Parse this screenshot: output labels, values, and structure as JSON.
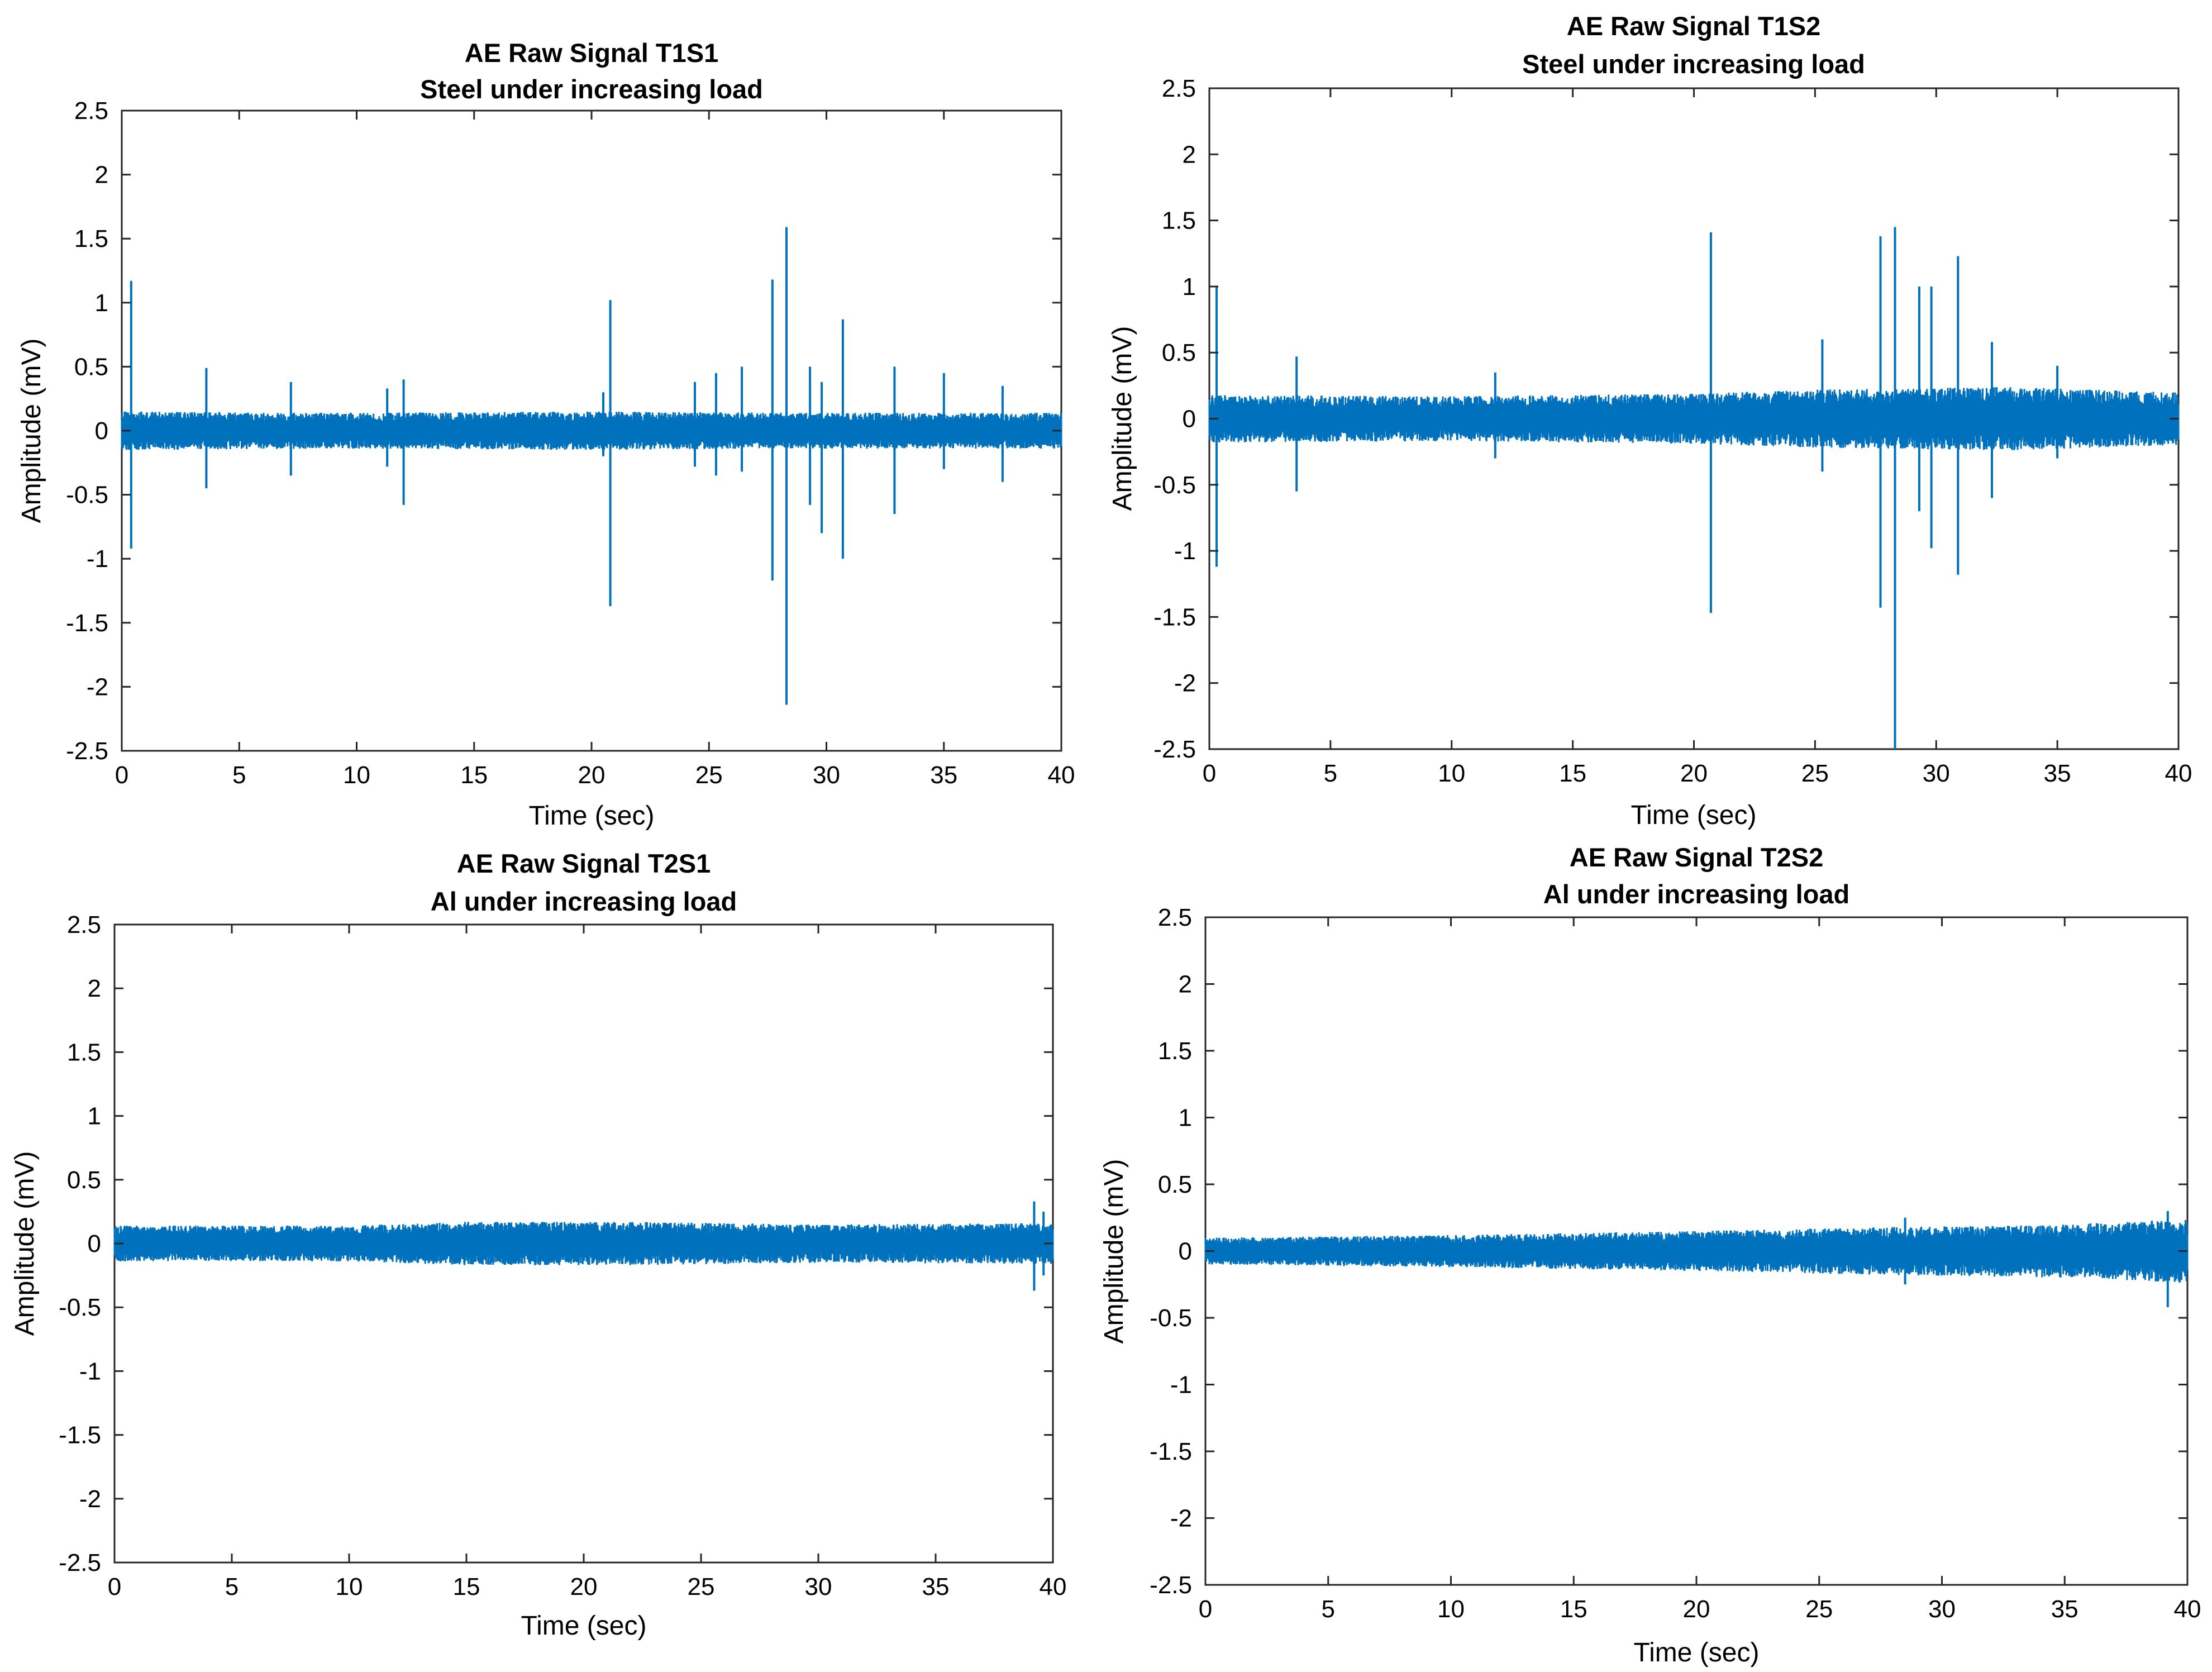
{
  "chart_data": [
    {
      "type": "line",
      "title": "AE Raw Signal T1S1",
      "subtitle": "Steel under increasing load",
      "xlabel": "Time (sec)",
      "ylabel": "Amplitude (mV)",
      "xlim": [
        0,
        40
      ],
      "ylim": [
        -2.5,
        2.5
      ],
      "xticks": [
        "0",
        "5",
        "10",
        "15",
        "20",
        "25",
        "30",
        "35",
        "40"
      ],
      "yticks": [
        "2.5",
        "2",
        "1.5",
        "1",
        "0.5",
        "0",
        "-0.5",
        "-1",
        "-1.5",
        "-2",
        "-2.5"
      ],
      "color": "#0072BD",
      "noise_band": [
        [
          0,
          0.15
        ],
        [
          10,
          0.14
        ],
        [
          20,
          0.15
        ],
        [
          30,
          0.14
        ],
        [
          40,
          0.14
        ]
      ],
      "spikes": [
        [
          0.4,
          1.17,
          -0.92
        ],
        [
          3.6,
          0.49,
          -0.45
        ],
        [
          7.2,
          0.38,
          -0.35
        ],
        [
          11.3,
          0.33,
          -0.28
        ],
        [
          12.0,
          0.4,
          -0.58
        ],
        [
          20.5,
          0.3,
          -0.2
        ],
        [
          20.8,
          1.02,
          -1.37
        ],
        [
          24.4,
          0.38,
          -0.28
        ],
        [
          25.3,
          0.45,
          -0.35
        ],
        [
          26.4,
          0.5,
          -0.32
        ],
        [
          27.7,
          1.18,
          -1.17
        ],
        [
          28.3,
          1.59,
          -2.14
        ],
        [
          29.3,
          0.5,
          -0.58
        ],
        [
          29.8,
          0.38,
          -0.8
        ],
        [
          30.7,
          0.87,
          -1.0
        ],
        [
          32.9,
          0.5,
          -0.65
        ],
        [
          35.0,
          0.45,
          -0.3
        ],
        [
          37.5,
          0.35,
          -0.4
        ]
      ]
    },
    {
      "type": "line",
      "title": "AE Raw Signal T1S2",
      "subtitle": "Steel under increasing load",
      "xlabel": "Time (sec)",
      "ylabel": "Amplitude (mV)",
      "xlim": [
        0,
        40
      ],
      "ylim": [
        -2.5,
        2.5
      ],
      "xticks": [
        "0",
        "5",
        "10",
        "15",
        "20",
        "25",
        "30",
        "35",
        "40"
      ],
      "yticks": [
        "2.5",
        "2",
        "1.5",
        "1",
        "0.5",
        "0",
        "-0.5",
        "-1",
        "-1.5",
        "-2",
        "-2.5"
      ],
      "color": "#0072BD",
      "noise_band": [
        [
          0,
          0.18
        ],
        [
          10,
          0.17
        ],
        [
          20,
          0.19
        ],
        [
          25,
          0.22
        ],
        [
          33,
          0.24
        ],
        [
          40,
          0.2
        ]
      ],
      "spikes": [
        [
          0.3,
          1.0,
          -1.12
        ],
        [
          3.6,
          0.47,
          -0.55
        ],
        [
          11.8,
          0.35,
          -0.3
        ],
        [
          20.7,
          1.41,
          -1.47
        ],
        [
          25.3,
          0.6,
          -0.4
        ],
        [
          27.7,
          1.38,
          -1.43
        ],
        [
          28.3,
          1.45,
          -2.5
        ],
        [
          29.3,
          1.0,
          -0.7
        ],
        [
          29.8,
          1.0,
          -0.98
        ],
        [
          30.9,
          1.23,
          -1.18
        ],
        [
          32.3,
          0.58,
          -0.6
        ],
        [
          35.0,
          0.4,
          -0.3
        ]
      ]
    },
    {
      "type": "line",
      "title": "AE Raw Signal T2S1",
      "subtitle": "Al under increasing load",
      "xlabel": "Time (sec)",
      "ylabel": "Amplitude (mV)",
      "xlim": [
        0,
        40
      ],
      "ylim": [
        -2.5,
        2.5
      ],
      "xticks": [
        "0",
        "5",
        "10",
        "15",
        "20",
        "25",
        "30",
        "35",
        "40"
      ],
      "yticks": [
        "2.5",
        "2",
        "1.5",
        "1",
        "0.5",
        "0",
        "-0.5",
        "-1",
        "-1.5",
        "-2",
        "-2.5"
      ],
      "color": "#0072BD",
      "noise_band": [
        [
          0,
          0.14
        ],
        [
          10,
          0.14
        ],
        [
          15,
          0.17
        ],
        [
          22,
          0.17
        ],
        [
          30,
          0.15
        ],
        [
          40,
          0.16
        ]
      ],
      "spikes": [
        [
          39.2,
          0.33,
          -0.37
        ],
        [
          39.6,
          0.25,
          -0.25
        ]
      ]
    },
    {
      "type": "line",
      "title": "AE Raw Signal T2S2",
      "subtitle": "Al under increasing load",
      "xlabel": "Time (sec)",
      "ylabel": "Amplitude (mV)",
      "xlim": [
        0,
        40
      ],
      "ylim": [
        -2.5,
        2.5
      ],
      "xticks": [
        "0",
        "5",
        "10",
        "15",
        "20",
        "25",
        "30",
        "35",
        "40"
      ],
      "yticks": [
        "2.5",
        "2",
        "1.5",
        "1",
        "0.5",
        "0",
        "-0.5",
        "-1",
        "-1.5",
        "-2",
        "-2.5"
      ],
      "color": "#0072BD",
      "noise_band": [
        [
          0,
          0.1
        ],
        [
          10,
          0.12
        ],
        [
          20,
          0.15
        ],
        [
          28,
          0.18
        ],
        [
          35,
          0.2
        ],
        [
          40,
          0.24
        ]
      ],
      "spikes": [
        [
          28.5,
          0.25,
          -0.25
        ],
        [
          39.2,
          0.3,
          -0.42
        ]
      ]
    }
  ]
}
